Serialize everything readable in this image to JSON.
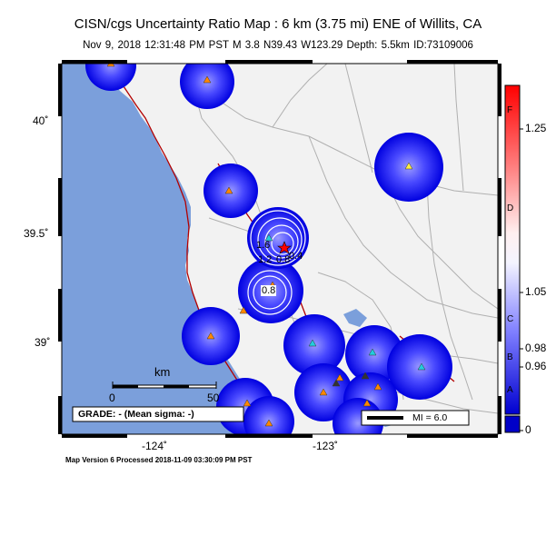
{
  "header": {
    "title": "CISN/cgs Uncertainty Ratio Map : 6 km (3.75 mi) ENE of Willits, CA",
    "subtitle": "Nov  9, 2018 12:31:48 PM PST   M 3.8   N39.43 W123.29   Depth: 5.5km   ID:73109006"
  },
  "axes": {
    "lat_labels": [
      "40˚",
      "39.5˚",
      "39˚"
    ],
    "lon_labels": [
      "-124˚",
      "-123˚"
    ]
  },
  "scalebar": {
    "unit": "km",
    "start": "0",
    "end": "50"
  },
  "grade_text": "GRADE: - (Mean sigma: -)",
  "mi_legend": "MI = 6.0",
  "contour_labels": [
    "1.6",
    "1.2",
    "0.8",
    "0.4",
    "0.8"
  ],
  "colorbar": {
    "letters": [
      "F",
      "D",
      "C",
      "B",
      "A"
    ],
    "values": [
      "1.25",
      "1.05",
      "0.98",
      "0.96",
      "0"
    ]
  },
  "footer": "Map Version 6 Processed 2018-11-09 03:30:09 PM PST",
  "colors": {
    "ocean": "#7b9fdb",
    "land": "#f2f2f2",
    "fault": "#b30000",
    "road": "#b0b0b0",
    "blob": "#0000e0"
  }
}
